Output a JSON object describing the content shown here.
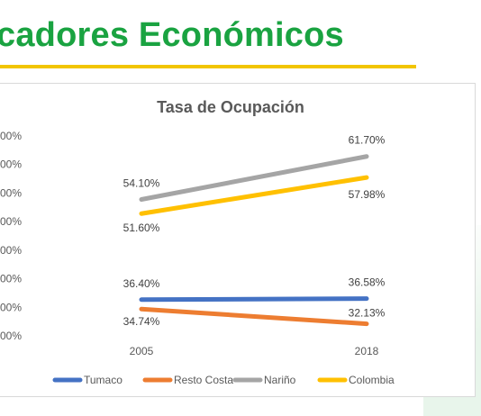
{
  "slide": {
    "title": "cadores Económicos"
  },
  "colors": {
    "title_green": "#1aa341",
    "accent_yellow": "#f2c500"
  },
  "chart_data": {
    "type": "line",
    "title": "Tasa de Ocupación",
    "categories": [
      "2005",
      "2018"
    ],
    "y_tick_labels": [
      "00%",
      "00%",
      "00%",
      "00%",
      "00%",
      "00%",
      "00%",
      "00%"
    ],
    "ylim": [
      30,
      65
    ],
    "grid": false,
    "legend_position": "bottom",
    "series": [
      {
        "name": "Tumaco",
        "color": "#4472c4",
        "values": [
          36.4,
          36.58
        ],
        "labels": [
          "36.40%",
          "36.58%"
        ]
      },
      {
        "name": "Resto Costa",
        "color": "#ed7d31",
        "values": [
          34.74,
          32.13
        ],
        "labels": [
          "34.74%",
          "32.13%"
        ]
      },
      {
        "name": "Nariño",
        "color": "#a5a5a5",
        "values": [
          54.1,
          61.7
        ],
        "labels": [
          "54.10%",
          "61.70%"
        ]
      },
      {
        "name": "Colombia",
        "color": "#ffc000",
        "values": [
          51.6,
          57.98
        ],
        "labels": [
          "51.60%",
          "57.98%"
        ]
      }
    ]
  }
}
